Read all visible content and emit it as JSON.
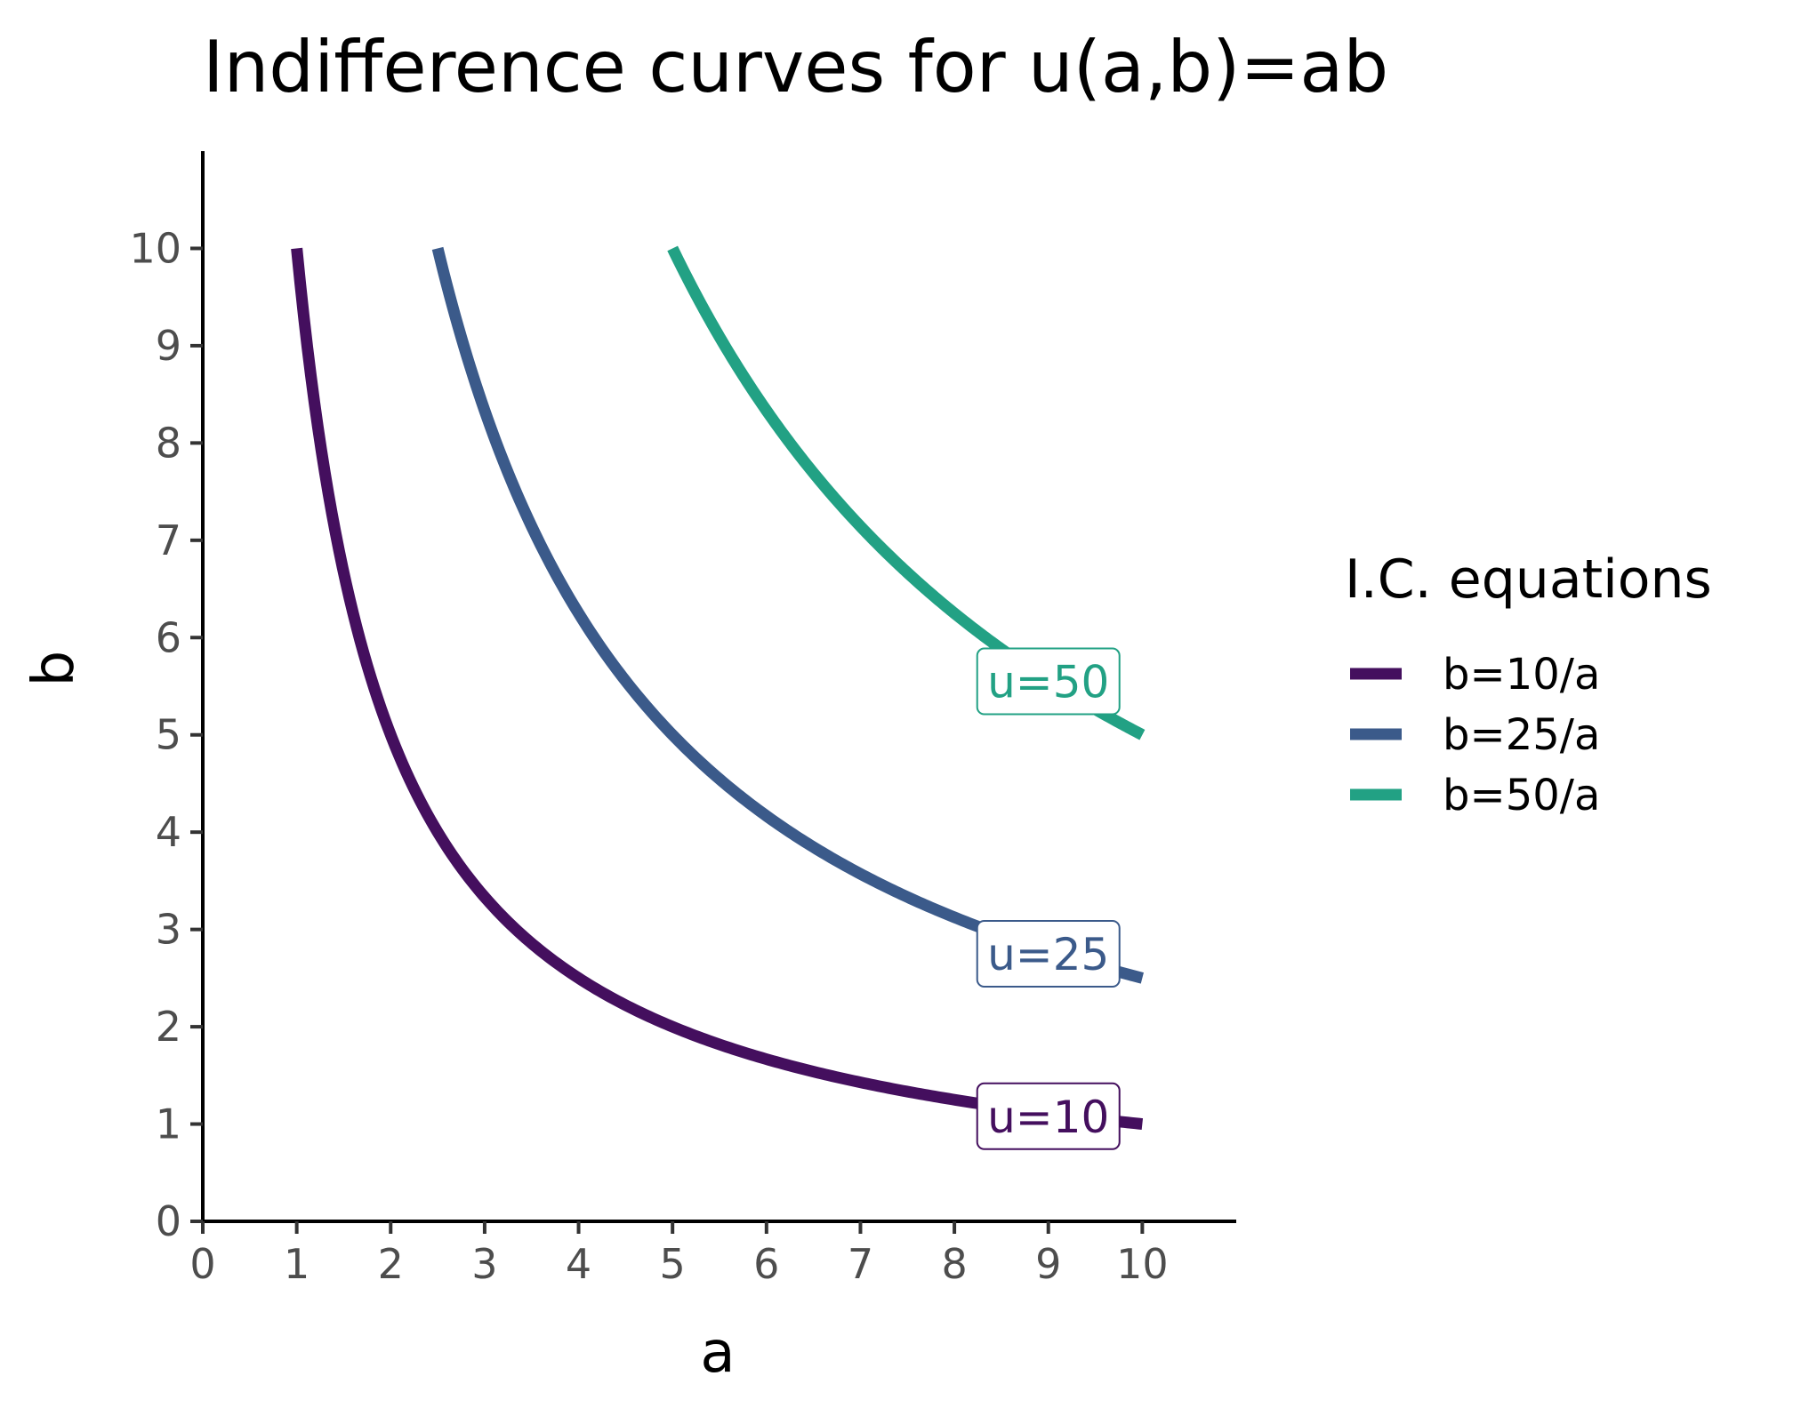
{
  "chart_data": {
    "type": "line",
    "title": "Indifference curves for u(a,b)=ab",
    "xlabel": "a",
    "ylabel": "b",
    "xlim": [
      0,
      11
    ],
    "ylim": [
      0,
      11
    ],
    "xticks": [
      0,
      1,
      2,
      3,
      4,
      5,
      6,
      7,
      8,
      9,
      10
    ],
    "yticks": [
      0,
      1,
      2,
      3,
      4,
      5,
      6,
      7,
      8,
      9,
      10
    ],
    "grid": false,
    "legend": {
      "title": "I.C. equations",
      "position": "right"
    },
    "series": [
      {
        "name": "b=10/a",
        "u": 10,
        "color": "#440f5e",
        "label": "u=10",
        "a_range": [
          1,
          10
        ],
        "x": [
          1,
          1.25,
          1.5,
          1.75,
          2,
          2.5,
          3,
          3.5,
          4,
          5,
          6,
          7,
          8,
          9,
          10
        ],
        "y": [
          10,
          8,
          6.67,
          5.71,
          5,
          4,
          3.33,
          2.86,
          2.5,
          2,
          1.67,
          1.43,
          1.25,
          1.11,
          1
        ]
      },
      {
        "name": "b=25/a",
        "u": 25,
        "color": "#3b5a8a",
        "label": "u=25",
        "a_range": [
          2.5,
          10
        ],
        "x": [
          2.5,
          3,
          3.5,
          4,
          4.5,
          5,
          6,
          7,
          8,
          9,
          10
        ],
        "y": [
          10,
          8.33,
          7.14,
          6.25,
          5.56,
          5,
          4.17,
          3.57,
          3.13,
          2.78,
          2.5
        ]
      },
      {
        "name": "b=50/a",
        "u": 50,
        "color": "#22a184",
        "label": "u=50",
        "a_range": [
          5,
          10
        ],
        "x": [
          5,
          5.5,
          6,
          6.5,
          7,
          7.5,
          8,
          8.5,
          9,
          9.5,
          10
        ],
        "y": [
          10,
          9.09,
          8.33,
          7.69,
          7.14,
          6.67,
          6.25,
          5.88,
          5.56,
          5.26,
          5
        ]
      }
    ],
    "curve_labels": [
      {
        "text": "u=10",
        "a": 9,
        "b": 1.08,
        "series": 0
      },
      {
        "text": "u=25",
        "a": 9,
        "b": 2.75,
        "series": 1
      },
      {
        "text": "u=50",
        "a": 9,
        "b": 5.55,
        "series": 2
      }
    ]
  }
}
